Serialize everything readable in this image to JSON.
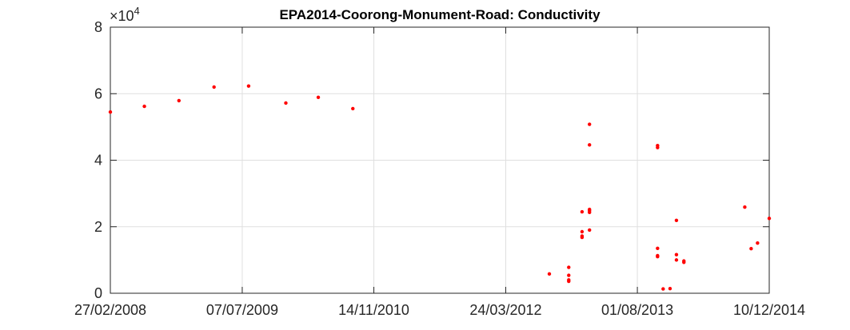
{
  "chart_data": {
    "type": "scatter",
    "title": "EPA2014-Coorong-Monument-Road: Conductivity",
    "xlabel": "",
    "ylabel": "",
    "y_multiplier_base": "10",
    "y_multiplier_exponent": "4",
    "x_tick_labels": [
      "27/02/2008",
      "07/07/2009",
      "14/11/2010",
      "24/03/2012",
      "01/08/2013",
      "10/12/2014"
    ],
    "x_ticks": [
      "2008-02-27",
      "2009-07-07",
      "2010-11-14",
      "2012-03-24",
      "2013-08-01",
      "2014-12-10"
    ],
    "xlim": [
      "2008-02-27",
      "2014-12-10"
    ],
    "y_tick_labels": [
      "0",
      "2",
      "4",
      "6",
      "8"
    ],
    "ylim": [
      0,
      80000
    ],
    "grid": true,
    "marker_color": "#ff0000",
    "series": [
      {
        "points": [
          [
            "2008-02-27",
            54500
          ],
          [
            "2008-07-04",
            56200
          ],
          [
            "2008-11-11",
            57900
          ],
          [
            "2009-03-23",
            62000
          ],
          [
            "2009-07-31",
            62300
          ],
          [
            "2009-12-18",
            57200
          ],
          [
            "2010-04-19",
            58900
          ],
          [
            "2010-08-27",
            55500
          ],
          [
            "2012-09-04",
            5800
          ],
          [
            "2012-11-16",
            7800
          ],
          [
            "2012-11-16",
            5400
          ],
          [
            "2012-11-16",
            4000
          ],
          [
            "2012-11-16",
            3600
          ],
          [
            "2013-01-05",
            24500
          ],
          [
            "2013-01-05",
            18500
          ],
          [
            "2013-01-05",
            17200
          ],
          [
            "2013-01-05",
            16800
          ],
          [
            "2013-02-02",
            50800
          ],
          [
            "2013-02-02",
            44600
          ],
          [
            "2013-02-02",
            25200
          ],
          [
            "2013-02-02",
            24800
          ],
          [
            "2013-02-02",
            24300
          ],
          [
            "2013-02-02",
            19000
          ],
          [
            "2013-10-16",
            44400
          ],
          [
            "2013-10-16",
            43800
          ],
          [
            "2013-10-16",
            13500
          ],
          [
            "2013-10-16",
            11300
          ],
          [
            "2013-10-16",
            11000
          ],
          [
            "2013-11-06",
            1300
          ],
          [
            "2013-12-02",
            1400
          ],
          [
            "2013-12-26",
            21900
          ],
          [
            "2013-12-26",
            11600
          ],
          [
            "2013-12-26",
            10000
          ],
          [
            "2014-01-23",
            9700
          ],
          [
            "2014-01-23",
            9300
          ],
          [
            "2014-09-09",
            25900
          ],
          [
            "2014-10-03",
            13400
          ],
          [
            "2014-10-27",
            15100
          ],
          [
            "2014-12-10",
            22500
          ]
        ]
      }
    ]
  }
}
